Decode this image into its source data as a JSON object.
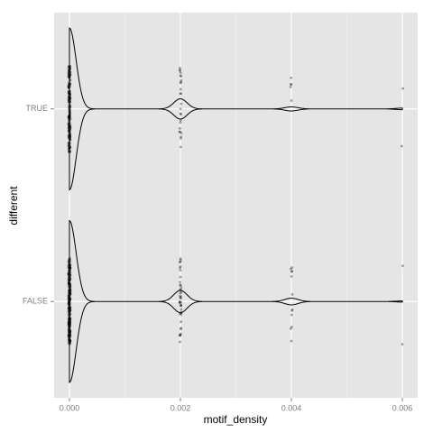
{
  "chart_data": {
    "type": "violin",
    "x_label": "motif_density",
    "y_label": "different",
    "categories": [
      "TRUE",
      "FALSE"
    ],
    "x": [
      0,
      0.002,
      0.004,
      0.006
    ],
    "series": [
      {
        "counts": [
          200,
          25,
          5,
          2
        ]
      },
      {
        "counts": [
          290,
          40,
          12,
          2
        ]
      }
    ],
    "xlim": [
      -0.000276,
      0.006276
    ],
    "xticks": [
      {
        "value": 0,
        "label": "0.000"
      },
      {
        "value": 0.002,
        "label": "0.002"
      },
      {
        "value": 0.004,
        "label": "0.004"
      },
      {
        "value": 0.006,
        "label": "0.006"
      }
    ],
    "grid": true
  }
}
